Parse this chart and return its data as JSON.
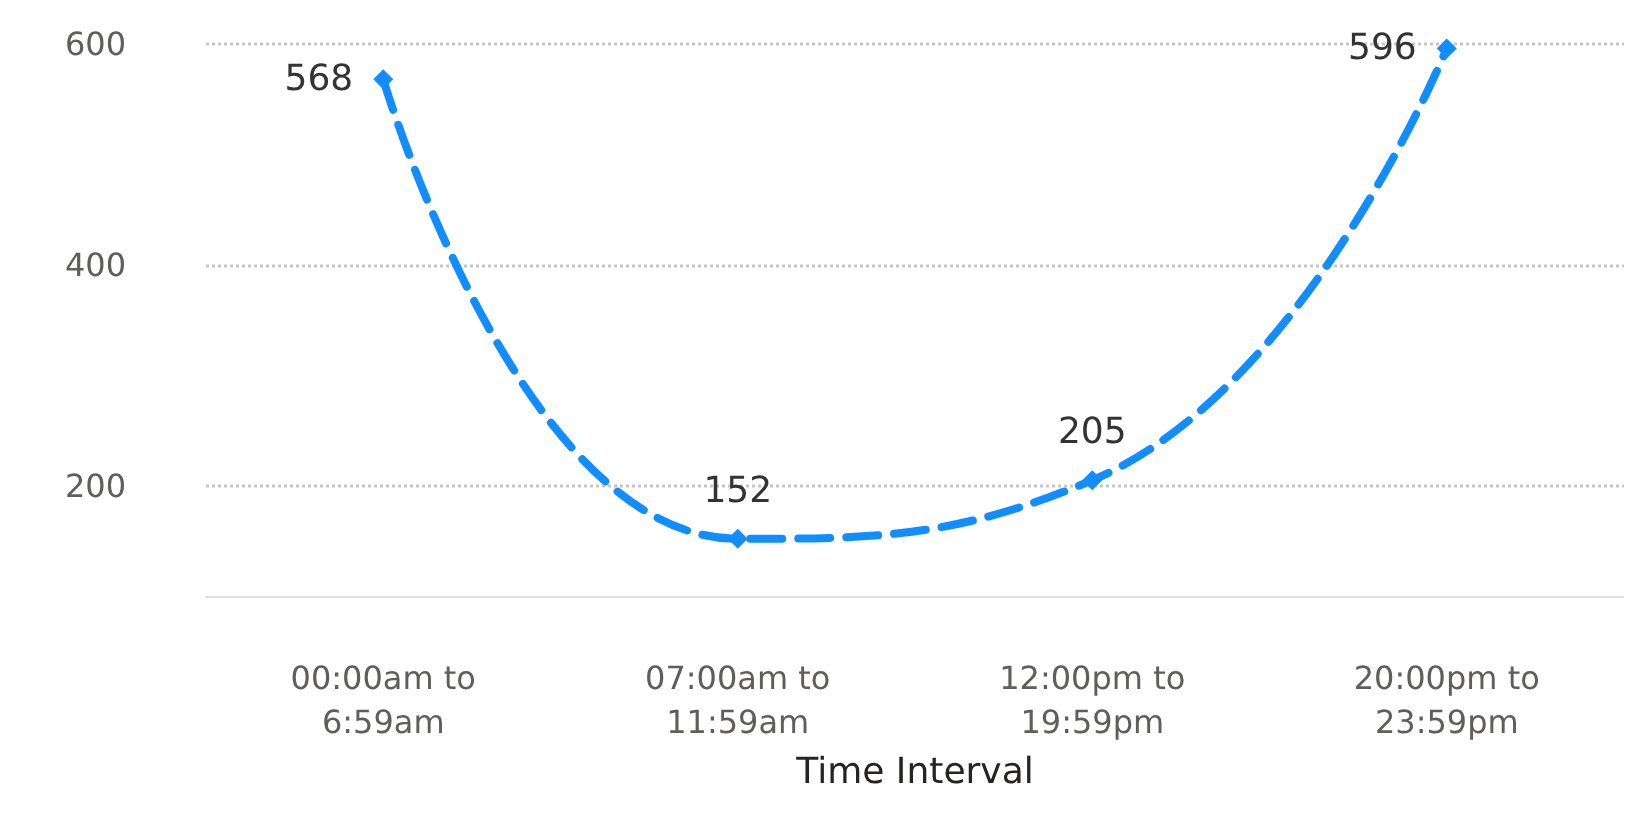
{
  "chart_data": {
    "type": "line",
    "xlabel": "Time Interval",
    "categories": [
      "00:00am to\n6:59am",
      "07:00am to\n11:59am",
      "12:00pm to\n19:59pm",
      "20:00pm to\n23:59pm"
    ],
    "series": [
      {
        "color": "#118dff",
        "values": [
          568,
          152,
          205,
          596
        ]
      }
    ],
    "ylim": [
      100,
      600
    ],
    "yticks": [
      200,
      400,
      600
    ],
    "grid": "y",
    "marker": "diamond",
    "line_style": "dashed",
    "data_labels": true
  }
}
